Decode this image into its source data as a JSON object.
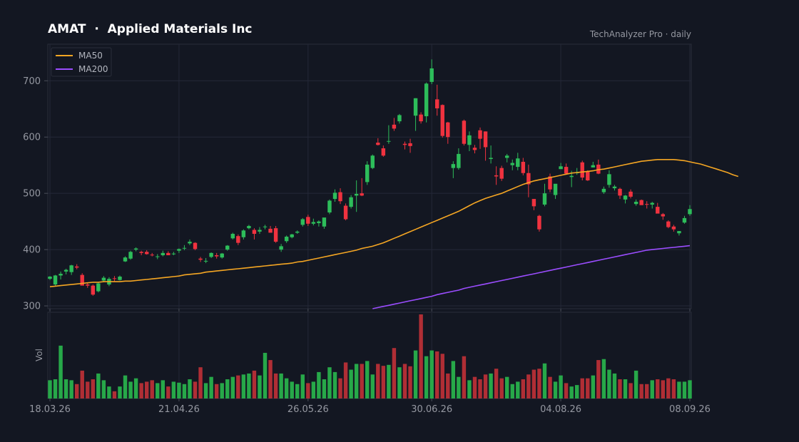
{
  "header": {
    "title": "AMAT  ·  Applied Materials Inc",
    "source": "TechAnalyzer Pro · daily"
  },
  "colors": {
    "background": "#131722",
    "grid": "#242838",
    "up": "#2dbd5a",
    "down": "#f0323f",
    "up_volume": "#27a849",
    "down_volume": "#b02e35",
    "ma50": "#f5a623",
    "ma200": "#9b4dff"
  },
  "chart_data": {
    "type": "candlestick",
    "symbol": "AMAT",
    "interval": "daily",
    "legend": {
      "position": "top-left",
      "entries": [
        "MA50",
        "MA200"
      ]
    },
    "y_axis": {
      "range": [
        295,
        765
      ],
      "ticks": [
        "300",
        "400",
        "500",
        "600",
        "700"
      ]
    },
    "x_axis": {
      "ticks": [
        "18.03.26",
        "21.04.26",
        "26.05.26",
        "30.06.26",
        "04.08.26",
        "08.09.26"
      ]
    },
    "volume_label": "Vol",
    "grid": true,
    "candles": [
      [
        348,
        353,
        346,
        352,
        0.38
      ],
      [
        338,
        355,
        336,
        354,
        0.4
      ],
      [
        354,
        361,
        347,
        357,
        1.1
      ],
      [
        361,
        366,
        356,
        364,
        0.4
      ],
      [
        360,
        373,
        355,
        372,
        0.38
      ],
      [
        370,
        374,
        365,
        368,
        0.3
      ],
      [
        355,
        358,
        338,
        336,
        0.58
      ],
      [
        338,
        340,
        332,
        336,
        0.35
      ],
      [
        336,
        338,
        318,
        320,
        0.4
      ],
      [
        326,
        342,
        324,
        340,
        0.52
      ],
      [
        345,
        353,
        342,
        350,
        0.38
      ],
      [
        338,
        351,
        335,
        348,
        0.25
      ],
      [
        349,
        353,
        344,
        348,
        0.15
      ],
      [
        346,
        354,
        345,
        352,
        0.25
      ],
      [
        379,
        388,
        378,
        386,
        0.48
      ],
      [
        384,
        398,
        382,
        396,
        0.35
      ],
      [
        400,
        404,
        397,
        402,
        0.42
      ],
      [
        396,
        398,
        390,
        394,
        0.32
      ],
      [
        396,
        399,
        391,
        392,
        0.35
      ],
      [
        391,
        394,
        388,
        390,
        0.38
      ],
      [
        387,
        392,
        383,
        388,
        0.32
      ],
      [
        390,
        398,
        388,
        394,
        0.38
      ],
      [
        394,
        397,
        390,
        390,
        0.25
      ],
      [
        393,
        396,
        390,
        393,
        0.35
      ],
      [
        398,
        402,
        394,
        401,
        0.33
      ],
      [
        402,
        408,
        399,
        403,
        0.3
      ],
      [
        411,
        418,
        408,
        414,
        0.4
      ],
      [
        412,
        413,
        399,
        401,
        0.35
      ],
      [
        384,
        387,
        378,
        382,
        0.65
      ],
      [
        380,
        385,
        376,
        380,
        0.32
      ],
      [
        387,
        395,
        385,
        394,
        0.45
      ],
      [
        390,
        394,
        384,
        388,
        0.3
      ],
      [
        386,
        394,
        384,
        393,
        0.32
      ],
      [
        400,
        408,
        398,
        407,
        0.4
      ],
      [
        420,
        430,
        418,
        428,
        0.45
      ],
      [
        424,
        427,
        408,
        412,
        0.48
      ],
      [
        422,
        436,
        418,
        434,
        0.5
      ],
      [
        438,
        444,
        436,
        442,
        0.52
      ],
      [
        435,
        438,
        418,
        428,
        0.58
      ],
      [
        432,
        440,
        428,
        435,
        0.48
      ],
      [
        440,
        444,
        436,
        441,
        0.95
      ],
      [
        437,
        442,
        430,
        430,
        0.8
      ],
      [
        438,
        442,
        412,
        414,
        0.52
      ],
      [
        400,
        410,
        396,
        406,
        0.52
      ],
      [
        415,
        425,
        412,
        423,
        0.42
      ],
      [
        422,
        428,
        420,
        427,
        0.35
      ],
      [
        430,
        434,
        428,
        432,
        0.3
      ],
      [
        444,
        456,
        441,
        454,
        0.5
      ],
      [
        458,
        462,
        442,
        446,
        0.32
      ],
      [
        446,
        455,
        443,
        449,
        0.35
      ],
      [
        447,
        452,
        441,
        450,
        0.55
      ],
      [
        441,
        456,
        437,
        457,
        0.4
      ],
      [
        466,
        489,
        463,
        487,
        0.65
      ],
      [
        490,
        507,
        485,
        501,
        0.55
      ],
      [
        502,
        509,
        481,
        486,
        0.42
      ],
      [
        478,
        482,
        452,
        454,
        0.75
      ],
      [
        476,
        497,
        473,
        493,
        0.6
      ],
      [
        496,
        523,
        467,
        499,
        0.72
      ],
      [
        500,
        527,
        495,
        496,
        0.72
      ],
      [
        520,
        557,
        515,
        551,
        0.78
      ],
      [
        545,
        569,
        543,
        567,
        0.5
      ],
      [
        590,
        598,
        585,
        586,
        0.72
      ],
      [
        580,
        585,
        565,
        567,
        0.68
      ],
      [
        593,
        621,
        588,
        593,
        0.7
      ],
      [
        622,
        634,
        611,
        615,
        1.05
      ],
      [
        628,
        641,
        624,
        639,
        0.65
      ],
      [
        588,
        592,
        578,
        586,
        0.72
      ],
      [
        589,
        597,
        572,
        584,
        0.67
      ],
      [
        638,
        669,
        611,
        669,
        1.0
      ],
      [
        640,
        644,
        624,
        628,
        1.75
      ],
      [
        637,
        697,
        626,
        695,
        0.88
      ],
      [
        698,
        738,
        694,
        722,
        1.0
      ],
      [
        667,
        693,
        638,
        651,
        0.98
      ],
      [
        657,
        658,
        599,
        602,
        0.93
      ],
      [
        626,
        627,
        588,
        600,
        0.52
      ],
      [
        545,
        557,
        527,
        552,
        0.78
      ],
      [
        545,
        580,
        542,
        570,
        0.45
      ],
      [
        629,
        631,
        585,
        588,
        0.88
      ],
      [
        586,
        610,
        575,
        603,
        0.38
      ],
      [
        581,
        586,
        571,
        577,
        0.45
      ],
      [
        612,
        617,
        579,
        597,
        0.4
      ],
      [
        610,
        610,
        558,
        582,
        0.5
      ],
      [
        561,
        585,
        553,
        563,
        0.52
      ],
      [
        532,
        548,
        515,
        530,
        0.62
      ],
      [
        545,
        549,
        522,
        526,
        0.42
      ],
      [
        563,
        570,
        555,
        567,
        0.45
      ],
      [
        550,
        560,
        541,
        554,
        0.3
      ],
      [
        547,
        572,
        541,
        562,
        0.35
      ],
      [
        556,
        563,
        532,
        536,
        0.4
      ],
      [
        536,
        551,
        493,
        516,
        0.5
      ],
      [
        490,
        490,
        470,
        477,
        0.6
      ],
      [
        460,
        462,
        432,
        436,
        0.62
      ],
      [
        480,
        517,
        477,
        500,
        0.73
      ],
      [
        530,
        535,
        502,
        507,
        0.45
      ],
      [
        497,
        515,
        490,
        517,
        0.35
      ],
      [
        543,
        554,
        545,
        548,
        0.48
      ],
      [
        547,
        553,
        533,
        535,
        0.32
      ],
      [
        529,
        540,
        511,
        531,
        0.25
      ],
      [
        536,
        545,
        533,
        537,
        0.28
      ],
      [
        555,
        558,
        523,
        528,
        0.42
      ],
      [
        539,
        541,
        522,
        523,
        0.42
      ],
      [
        546,
        556,
        546,
        550,
        0.48
      ],
      [
        551,
        560,
        534,
        535,
        0.8
      ],
      [
        502,
        512,
        499,
        508,
        0.82
      ],
      [
        515,
        541,
        510,
        534,
        0.6
      ],
      [
        509,
        515,
        505,
        512,
        0.52
      ],
      [
        508,
        510,
        490,
        496,
        0.4
      ],
      [
        489,
        497,
        482,
        496,
        0.4
      ],
      [
        503,
        507,
        491,
        494,
        0.32
      ],
      [
        481,
        489,
        478,
        485,
        0.58
      ],
      [
        488,
        489,
        480,
        479,
        0.3
      ],
      [
        481,
        486,
        473,
        480,
        0.3
      ],
      [
        480,
        485,
        473,
        483,
        0.38
      ],
      [
        476,
        483,
        468,
        464,
        0.4
      ],
      [
        463,
        465,
        453,
        459,
        0.38
      ],
      [
        450,
        452,
        438,
        440,
        0.42
      ],
      [
        441,
        444,
        432,
        436,
        0.4
      ],
      [
        429,
        433,
        425,
        433,
        0.35
      ],
      [
        448,
        460,
        446,
        456,
        0.35
      ],
      [
        463,
        479,
        460,
        472,
        0.38
      ]
    ],
    "ma50_values": [
      334,
      335,
      336,
      337,
      338,
      339,
      340,
      341,
      342,
      342,
      343,
      343,
      343,
      343,
      344,
      344,
      345,
      346,
      347,
      348,
      349,
      350,
      351,
      352,
      353,
      355,
      356,
      357,
      358,
      360,
      361,
      362,
      363,
      364,
      365,
      366,
      367,
      368,
      369,
      370,
      371,
      372,
      373,
      374,
      375,
      376,
      378,
      379,
      381,
      383,
      385,
      387,
      389,
      391,
      393,
      395,
      397,
      399,
      402,
      404,
      406,
      409,
      412,
      416,
      420,
      424,
      428,
      432,
      436,
      440,
      444,
      448,
      452,
      456,
      460,
      464,
      468,
      473,
      478,
      483,
      487,
      491,
      494,
      497,
      500,
      504,
      508,
      512,
      516,
      519,
      522,
      524,
      526,
      528,
      530,
      532,
      534,
      536,
      537,
      538,
      539,
      540,
      542,
      543,
      545,
      547,
      549,
      551,
      553,
      555,
      557,
      558,
      559,
      560,
      560,
      560,
      560,
      559,
      558,
      556,
      554,
      552,
      549,
      546,
      543,
      540,
      537,
      533,
      530
    ],
    "ma200_values": [
      281,
      282,
      283,
      284,
      285,
      287,
      289,
      291,
      293,
      295,
      297,
      299,
      301,
      303,
      305,
      307,
      309,
      311,
      313,
      315,
      317,
      320,
      322,
      324,
      326,
      328,
      331,
      333,
      335,
      337,
      339,
      341,
      343,
      345,
      347,
      349,
      351,
      353,
      355,
      357,
      359,
      361,
      363,
      365,
      367,
      369,
      371,
      373,
      375,
      377,
      379,
      381,
      383,
      385,
      387,
      389,
      391,
      393,
      395,
      397,
      399,
      400,
      401,
      402,
      403,
      404,
      405,
      406,
      407
    ]
  }
}
